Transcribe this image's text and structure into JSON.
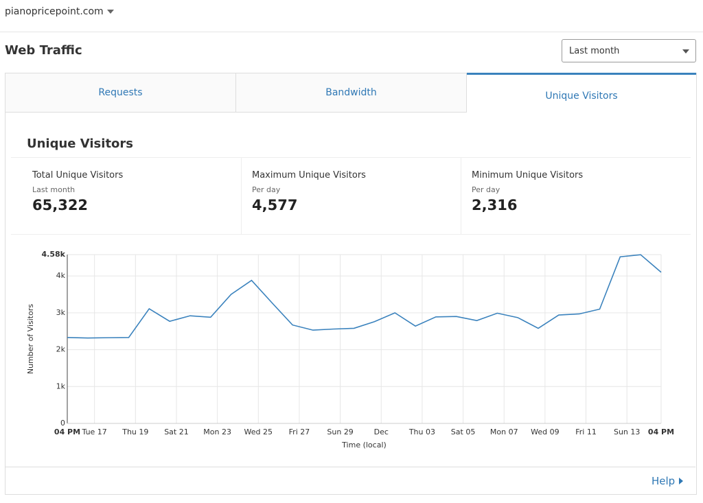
{
  "header": {
    "site": "pianopricepoint.com"
  },
  "title": "Web Traffic",
  "range_select": "Last month",
  "tabs": [
    "Requests",
    "Bandwidth",
    "Unique Visitors"
  ],
  "panel_title": "Unique Visitors",
  "stats": [
    {
      "label": "Total Unique Visitors",
      "sub": "Last month",
      "value": "65,322"
    },
    {
      "label": "Maximum Unique Visitors",
      "sub": "Per day",
      "value": "4,577"
    },
    {
      "label": "Minimum Unique Visitors",
      "sub": "Per day",
      "value": "2,316"
    }
  ],
  "help": "Help",
  "chart_data": {
    "type": "line",
    "x": [
      0,
      1,
      2,
      3,
      4,
      5,
      6,
      7,
      8,
      9,
      10,
      11,
      12,
      13,
      14,
      15,
      16,
      17,
      18,
      19,
      20,
      21,
      22,
      23,
      24,
      25,
      26,
      27,
      28,
      29
    ],
    "values": [
      2330,
      2316,
      2325,
      2330,
      3110,
      2770,
      2920,
      2880,
      3500,
      3880,
      3270,
      2670,
      2530,
      2560,
      2580,
      2760,
      3000,
      2640,
      2890,
      2900,
      2790,
      2990,
      2870,
      2580,
      2940,
      2970,
      3100,
      4520,
      4577,
      4100
    ],
    "color": "#3a82bd",
    "x_label": "Time (local)",
    "y_label": "Number of Visitors",
    "xlim": [
      0,
      29
    ],
    "xticks": [
      {
        "value": 0,
        "label": "04 PM"
      },
      {
        "value": 1.33,
        "label": "Tue 17"
      },
      {
        "value": 3.33,
        "label": "Thu 19"
      },
      {
        "value": 5.33,
        "label": "Sat 21"
      },
      {
        "value": 7.33,
        "label": "Mon 23"
      },
      {
        "value": 9.33,
        "label": "Wed 25"
      },
      {
        "value": 11.33,
        "label": "Fri 27"
      },
      {
        "value": 13.33,
        "label": "Sun 29"
      },
      {
        "value": 15.33,
        "label": "Dec"
      },
      {
        "value": 17.33,
        "label": "Thu 03"
      },
      {
        "value": 19.33,
        "label": "Sat 05"
      },
      {
        "value": 21.33,
        "label": "Mon 07"
      },
      {
        "value": 23.33,
        "label": "Wed 09"
      },
      {
        "value": 25.33,
        "label": "Fri 11"
      },
      {
        "value": 27.33,
        "label": "Sun 13"
      },
      {
        "value": 29,
        "label": "04 PM"
      }
    ],
    "ylim": [
      0,
      4580
    ],
    "yticks": [
      0,
      {
        "value": 1000,
        "label": "1k"
      },
      {
        "value": 2000,
        "label": "2k"
      },
      {
        "value": 3000,
        "label": "3k"
      },
      {
        "value": 4000,
        "label": "4k"
      },
      {
        "value": 4580,
        "label": "4.58k"
      }
    ],
    "grid": true
  }
}
